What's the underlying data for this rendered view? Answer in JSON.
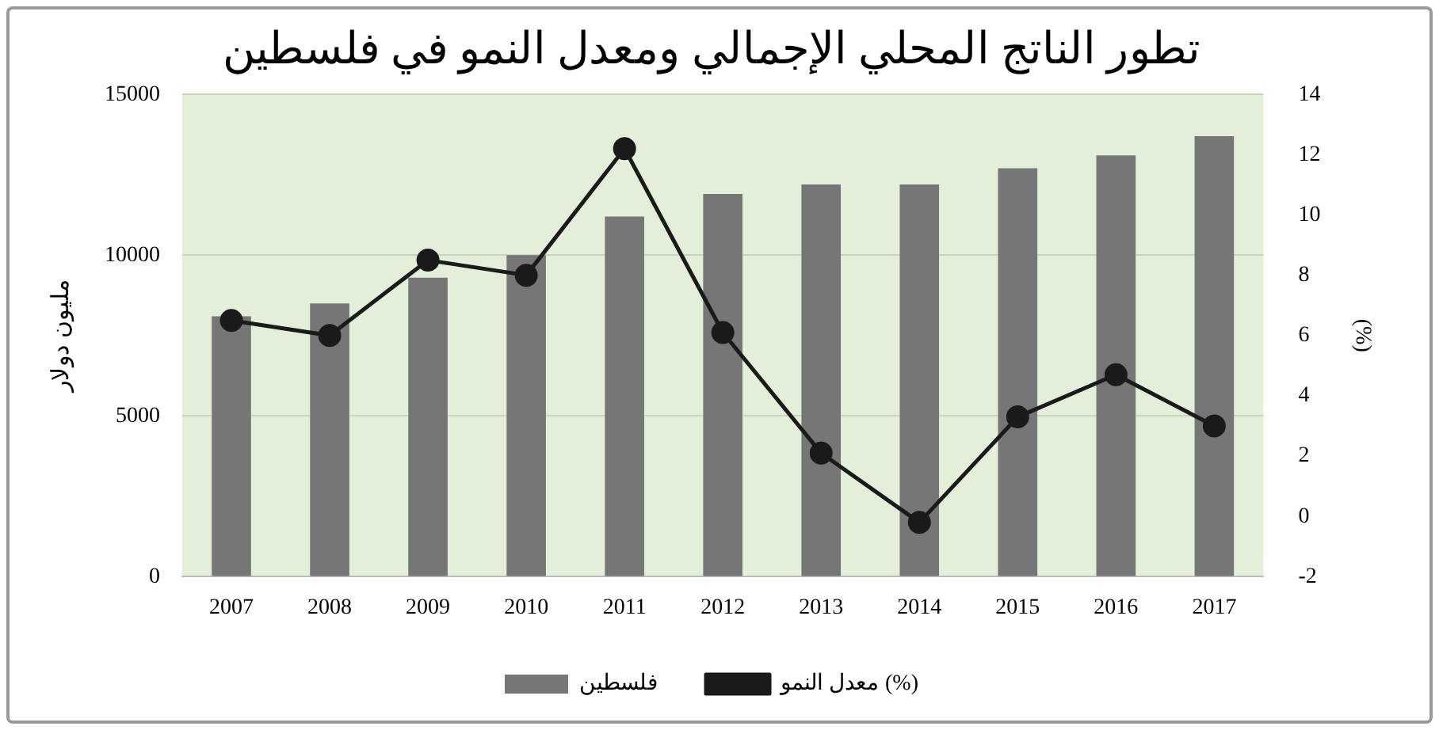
{
  "chart_data": {
    "type": "bar",
    "title": "تطور الناتج المحلي الإجمالي ومعدل النمو في فلسطين",
    "ylabel": "مليون دولار",
    "y2label": "(%)",
    "categories": [
      "2007",
      "2008",
      "2009",
      "2010",
      "2011",
      "2012",
      "2013",
      "2014",
      "2015",
      "2016",
      "2017"
    ],
    "series": [
      {
        "name": "فلسطين",
        "color": "#767676",
        "values": [
          8100,
          8500,
          9300,
          10000,
          11200,
          11900,
          12200,
          12200,
          12700,
          13100,
          13700
        ]
      },
      {
        "name": "معدل النمو (%)",
        "type": "line",
        "axis": "y2",
        "color": "#1a1a1a",
        "values": [
          6.5,
          6.0,
          8.5,
          8.0,
          12.2,
          6.1,
          2.1,
          -0.2,
          3.3,
          4.7,
          3.0
        ]
      }
    ],
    "ylim": [
      0,
      15000
    ],
    "yticks": [
      0,
      5000,
      10000,
      15000
    ],
    "y2lim": [
      -2,
      14
    ],
    "y2ticks": [
      -2,
      0,
      2,
      4,
      6,
      8,
      10,
      12,
      14
    ],
    "grid": "y",
    "legend": "bottom",
    "marker": "circle",
    "line_style": "solid"
  }
}
